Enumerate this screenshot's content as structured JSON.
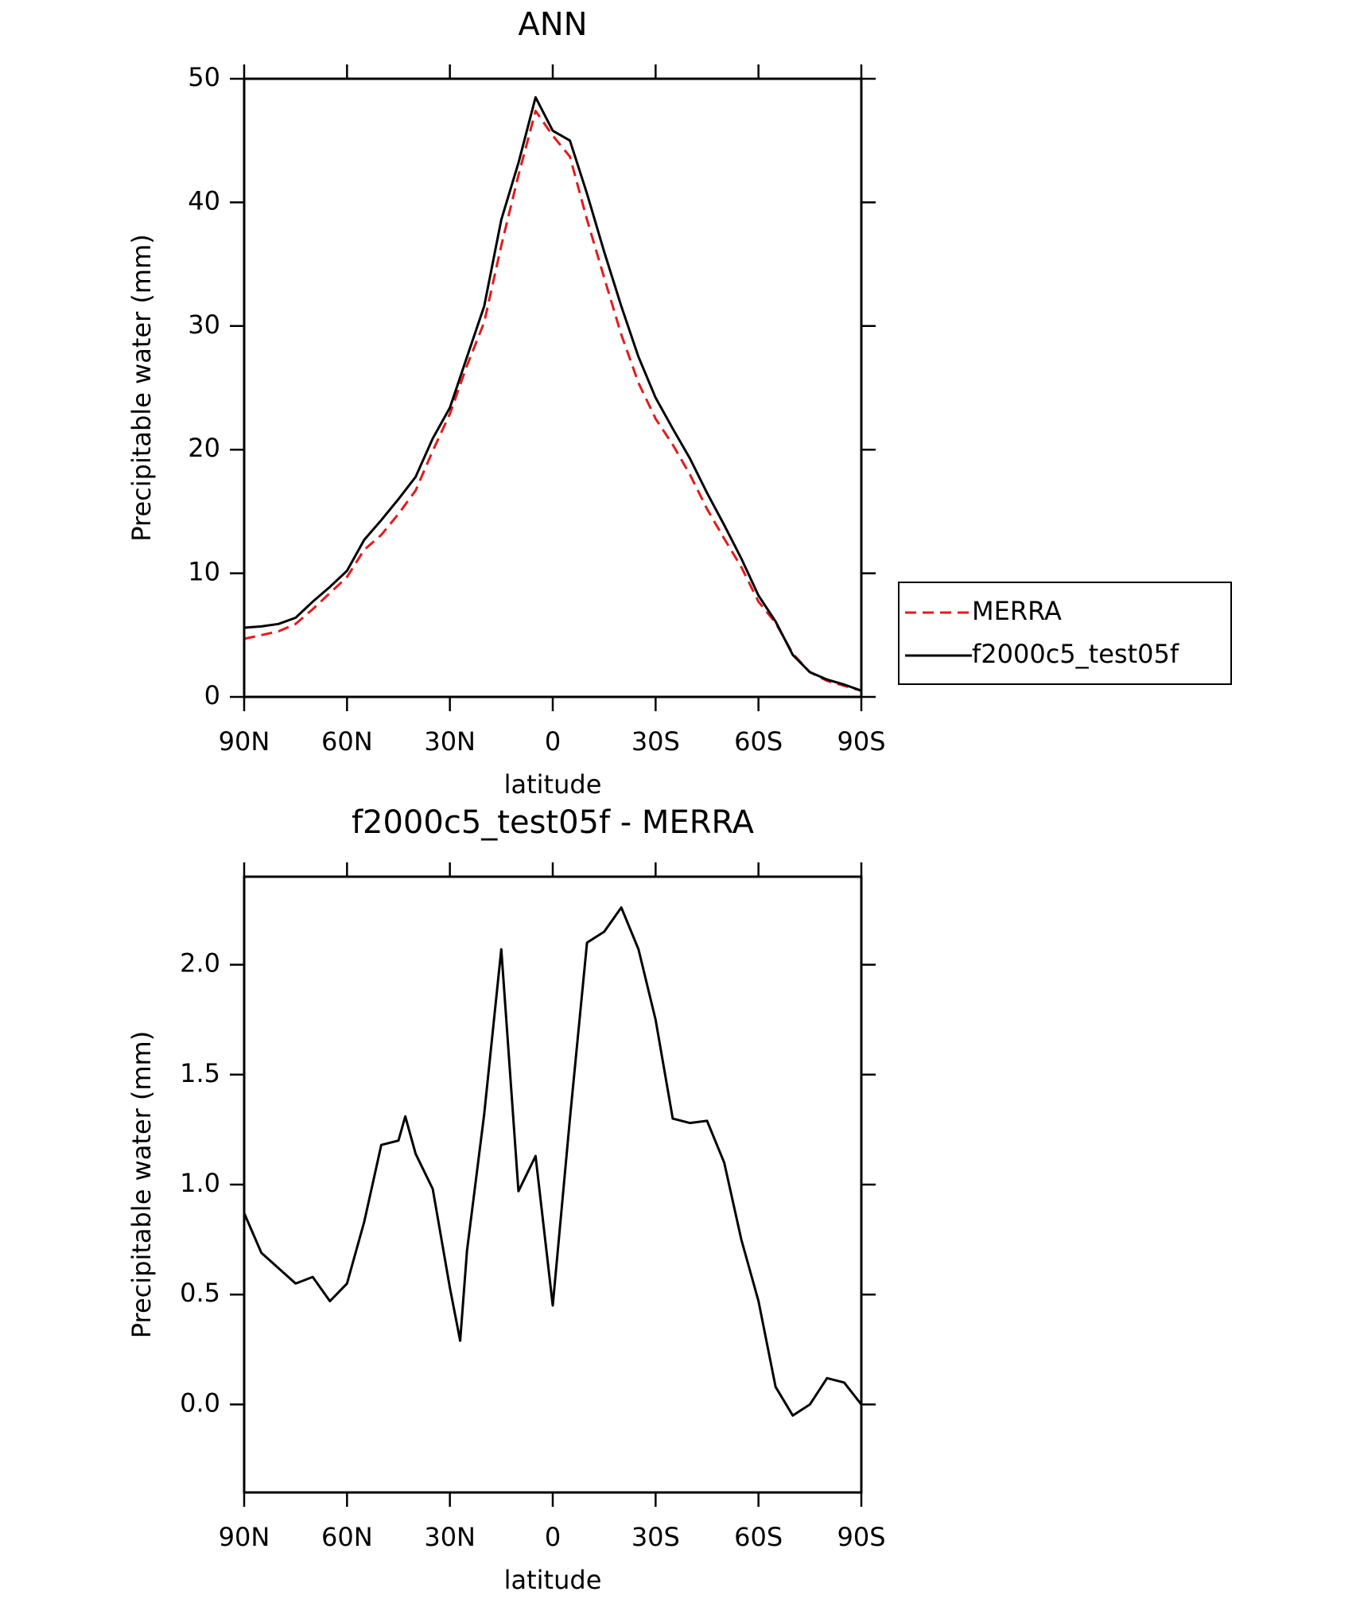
{
  "chart_data": [
    {
      "type": "line",
      "title": "ANN",
      "xlabel": "latitude",
      "ylabel": "Precipitable water (mm)",
      "x": [
        90,
        85,
        80,
        75,
        70,
        65,
        60,
        55,
        50,
        45,
        40,
        35,
        30,
        25,
        20,
        15,
        10,
        5,
        0,
        -5,
        -10,
        -15,
        -20,
        -25,
        -30,
        -35,
        -40,
        -45,
        -50,
        -55,
        -60,
        -65,
        -70,
        -75,
        -80,
        -85,
        -90
      ],
      "series": [
        {
          "name": "MERRA",
          "color": "#e41a1c",
          "dashed": true,
          "values": [
            4.7,
            5.0,
            5.3,
            5.9,
            7.1,
            8.4,
            9.7,
            11.9,
            13.1,
            14.8,
            16.7,
            19.9,
            22.9,
            26.8,
            30.3,
            36.5,
            42.2,
            47.4,
            45.4,
            43.7,
            38.6,
            33.9,
            29.3,
            25.4,
            22.5,
            20.4,
            18.0,
            15.2,
            12.8,
            10.5,
            7.7,
            6.0,
            3.5,
            2.0,
            1.3,
            0.9,
            0.5
          ]
        },
        {
          "name": "f2000c5_test05f",
          "color": "#000000",
          "dashed": false,
          "values": [
            5.6,
            5.7,
            5.9,
            6.4,
            7.7,
            8.9,
            10.2,
            12.7,
            14.3,
            16.0,
            17.8,
            20.9,
            23.4,
            27.5,
            31.6,
            38.6,
            43.2,
            48.5,
            45.8,
            45.0,
            40.7,
            36.0,
            31.6,
            27.5,
            24.2,
            21.7,
            19.3,
            16.5,
            13.9,
            11.2,
            8.2,
            6.1,
            3.4,
            2.0,
            1.4,
            1.0,
            0.5
          ]
        }
      ],
      "xlim": [
        90,
        -90
      ],
      "xticks": [
        {
          "value": 90,
          "label": "90N"
        },
        {
          "value": 60,
          "label": "60N"
        },
        {
          "value": 30,
          "label": "30N"
        },
        0,
        {
          "value": -30,
          "label": "30S"
        },
        {
          "value": -60,
          "label": "60S"
        },
        {
          "value": -90,
          "label": "90S"
        }
      ],
      "ylim": [
        0,
        50
      ],
      "yticks": [
        0,
        10,
        20,
        30,
        40,
        50
      ],
      "legend": "right"
    },
    {
      "type": "line",
      "title": "f2000c5_test05f - MERRA",
      "xlabel": "latitude",
      "ylabel": "Precipitable water (mm)",
      "x": [
        90,
        85,
        80,
        75,
        70,
        65,
        60,
        55,
        50,
        45,
        43,
        40,
        35,
        30,
        27,
        25,
        20,
        15,
        10,
        5,
        0,
        -5,
        -10,
        -15,
        -20,
        -25,
        -30,
        -35,
        -40,
        -45,
        -50,
        -55,
        -60,
        -65,
        -70,
        -75,
        -80,
        -85,
        -90
      ],
      "series": [
        {
          "color": "#000000",
          "dashed": false,
          "values": [
            0.87,
            0.69,
            0.62,
            0.55,
            0.58,
            0.47,
            0.55,
            0.83,
            1.18,
            1.2,
            1.31,
            1.14,
            0.98,
            0.53,
            0.29,
            0.7,
            1.32,
            2.07,
            0.97,
            1.13,
            0.45,
            1.3,
            2.1,
            2.15,
            2.26,
            2.07,
            1.75,
            1.3,
            1.28,
            1.29,
            1.1,
            0.75,
            0.47,
            0.08,
            -0.05,
            0.0,
            0.12,
            0.1,
            0.0
          ]
        }
      ],
      "xlim": [
        90,
        -90
      ],
      "xticks": [
        {
          "value": 90,
          "label": "90N"
        },
        {
          "value": 60,
          "label": "60N"
        },
        {
          "value": 30,
          "label": "30N"
        },
        0,
        {
          "value": -30,
          "label": "30S"
        },
        {
          "value": -60,
          "label": "60S"
        },
        {
          "value": -90,
          "label": "90S"
        }
      ],
      "ylim": [
        -0.4,
        2.4
      ],
      "yticks": [
        {
          "value": 0,
          "label": "0.0"
        },
        0.5,
        {
          "value": 1,
          "label": "1.0"
        },
        1.5,
        {
          "value": 2,
          "label": "2.0"
        }
      ]
    }
  ]
}
